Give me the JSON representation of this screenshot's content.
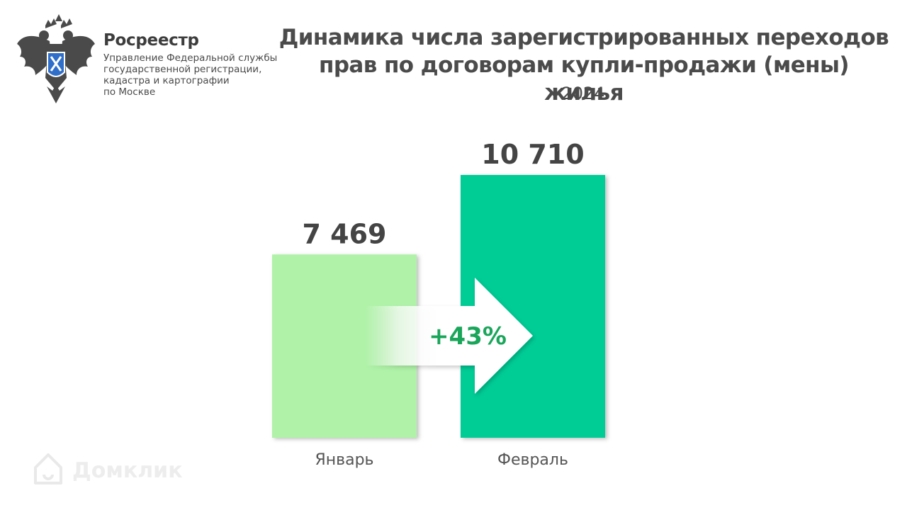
{
  "header": {
    "org_name": "Росреестр",
    "org_subtitle_lines": [
      "Управление Федеральной службы",
      "государственной регистрации,",
      "кадастра и картографии",
      "по Москве"
    ],
    "title_lines": [
      "Динамика числа зарегистрированных переходов",
      "прав по договорам купли-продажи (мены) жилья"
    ],
    "year": "2024"
  },
  "change_label": "+43%",
  "watermark": "Домклик",
  "colors": {
    "january_bar": "#aff2a8",
    "february_bar": "#00cc96",
    "value_text": "#444444",
    "change_text": "#1aa65a",
    "axis_text": "#555555"
  },
  "chart_data": {
    "type": "bar",
    "categories": [
      "Январь",
      "Февраль"
    ],
    "values": [
      7469,
      10710
    ],
    "value_labels": [
      "7 469",
      "10 710"
    ],
    "ylim": [
      0,
      10710
    ],
    "grid": false,
    "legend": "none"
  }
}
